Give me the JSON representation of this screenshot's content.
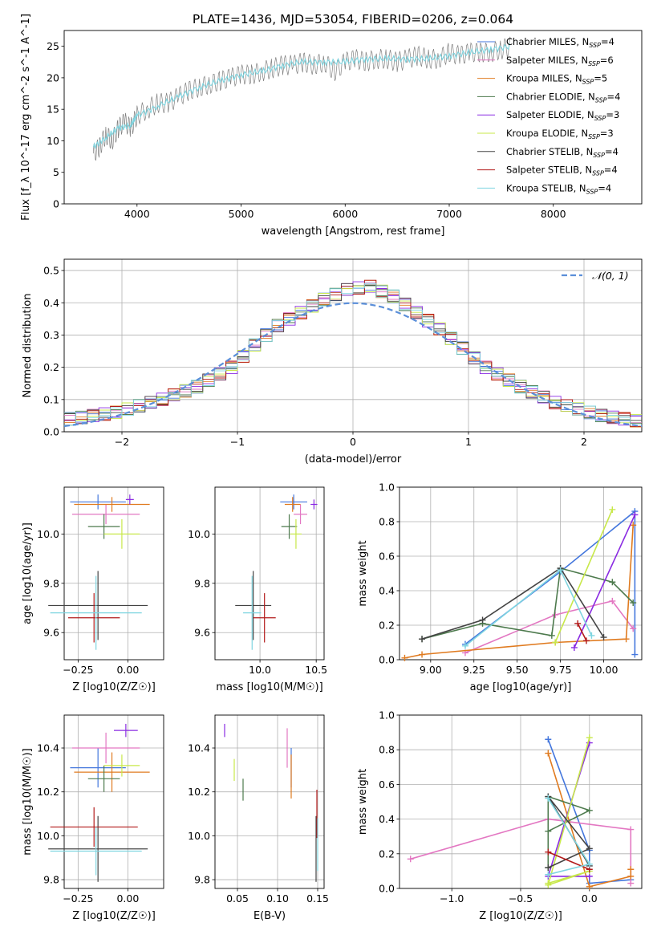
{
  "figure_title": "PLATE=1436, MJD=53054, FIBERID=0206, z=0.064",
  "colors": {
    "chab_miles": "#4477dd",
    "salp_miles": "#e377c2",
    "krou_miles": "#e07b20",
    "chab_elodie": "#4d7a4d",
    "salp_elodie": "#8a2be2",
    "krou_elodie": "#c8e84a",
    "chab_stelib": "#444444",
    "salp_stelib": "#b31b1b",
    "krou_stelib": "#7fd5e0",
    "gauss": "#5b8fd9"
  },
  "chart_data": [
    {
      "id": "spectrum",
      "type": "line",
      "title": "PLATE=1436, MJD=53054, FIBERID=0206, z=0.064",
      "xlabel": "wavelength [Angstrom, rest frame]",
      "ylabel": "Flux [f_λ 10^-17 erg cm^-2 s^-1 A^-1]",
      "xlim": [
        3300,
        8850
      ],
      "ylim": [
        0,
        27.5
      ],
      "xticks": [
        "4000",
        "5000",
        "6000",
        "7000",
        "8000"
      ],
      "yticks": [
        "0",
        "5",
        "10",
        "15",
        "20",
        "25"
      ],
      "grid": false,
      "legend_position": "right",
      "legend": [
        {
          "base": "Chabrier MILES, N",
          "sub": "SSP",
          "eq": "=4",
          "color": "#4477dd"
        },
        {
          "base": "Salpeter MILES, N",
          "sub": "SSP",
          "eq": "=6",
          "color": "#e377c2"
        },
        {
          "base": "Kroupa MILES, N",
          "sub": "SSP",
          "eq": "=5",
          "color": "#e07b20"
        },
        {
          "base": "Chabrier ELODIE, N",
          "sub": "SSP",
          "eq": "=4",
          "color": "#4d7a4d"
        },
        {
          "base": "Salpeter ELODIE, N",
          "sub": "SSP",
          "eq": "=3",
          "color": "#8a2be2"
        },
        {
          "base": "Kroupa ELODIE, N",
          "sub": "SSP",
          "eq": "=3",
          "color": "#c8e84a"
        },
        {
          "base": "Chabrier STELIB, N",
          "sub": "SSP",
          "eq": "=4",
          "color": "#444444"
        },
        {
          "base": "Salpeter STELIB, N",
          "sub": "SSP",
          "eq": "=4",
          "color": "#b31b1b"
        },
        {
          "base": "Kroupa STELIB, N",
          "sub": "SSP",
          "eq": "=4",
          "color": "#7fd5e0"
        }
      ],
      "series": [
        {
          "name": "data",
          "color": "#808080",
          "x": [
            3580,
            3640,
            3700,
            3760,
            3820,
            3880,
            3940,
            4000,
            4100,
            4200,
            4300,
            4400,
            4500,
            4600,
            4700,
            4800,
            4900,
            5000,
            5100,
            5200,
            5300,
            5400,
            5500,
            5600,
            5700,
            5800,
            5900,
            6000,
            6100,
            6200,
            6300,
            6400,
            6500,
            6600,
            6700,
            6800,
            6900,
            7000,
            7100,
            7200,
            7300,
            7400,
            7500,
            7600
          ],
          "y": [
            8,
            9,
            11,
            10,
            12,
            13,
            12,
            14,
            15,
            16,
            16,
            17,
            18,
            18.5,
            19,
            19.5,
            20,
            20.5,
            20.5,
            21,
            21.5,
            22,
            22,
            22.5,
            22,
            22.5,
            21,
            22.5,
            23,
            22.5,
            23,
            23,
            22.5,
            23,
            23.5,
            23,
            23,
            24,
            23.5,
            24,
            24,
            24,
            24.5,
            25
          ]
        },
        {
          "name": "model",
          "color": "#7fd5e0",
          "x": [
            3580,
            3700,
            3820,
            3940,
            4000,
            4200,
            4400,
            4600,
            4800,
            5000,
            5200,
            5400,
            5600,
            5800,
            6000,
            6200,
            6400,
            6600,
            6800,
            7000,
            7200,
            7400,
            7600
          ],
          "y": [
            9,
            10.5,
            12,
            12.5,
            14,
            15.5,
            17,
            18.5,
            19.5,
            20.5,
            21,
            22,
            22.5,
            22.5,
            22.5,
            23,
            23,
            23,
            23,
            23.5,
            24,
            24.5,
            25
          ]
        }
      ]
    },
    {
      "id": "residuals",
      "type": "line",
      "xlabel": "(data-model)/error",
      "ylabel": "Normed distribution",
      "xlim": [
        -2.5,
        2.5
      ],
      "ylim": [
        0,
        0.535
      ],
      "xticks": [
        "−2",
        "−1",
        "0",
        "1",
        "2"
      ],
      "yticks": [
        "0.0",
        "0.1",
        "0.2",
        "0.3",
        "0.4",
        "0.5"
      ],
      "grid": true,
      "legend_position": "top-right",
      "legend": [
        {
          "label": "𝒩(0, 1)",
          "style": "dashed"
        }
      ],
      "series": [
        {
          "name": "𝒩(0, 1)",
          "style": "dashed",
          "mu": 0,
          "sigma": 1
        },
        {
          "name": "histogram",
          "style": "step",
          "x": [
            -2.5,
            -2.1,
            -1.7,
            -1.4,
            -1.1,
            -0.9,
            -0.7,
            -0.5,
            -0.3,
            -0.1,
            0.1,
            0.3,
            0.5,
            0.7,
            0.9,
            1.1,
            1.4,
            1.7,
            2.1,
            2.5
          ],
          "y": [
            0.04,
            0.06,
            0.1,
            0.14,
            0.2,
            0.27,
            0.33,
            0.37,
            0.41,
            0.44,
            0.45,
            0.42,
            0.37,
            0.32,
            0.26,
            0.2,
            0.14,
            0.09,
            0.05,
            0.03
          ]
        }
      ]
    },
    {
      "id": "age_vs_Z",
      "type": "scatter",
      "xlabel": "Z [log10(Z/Z☉)]",
      "ylabel": "age [log10(age/yr)]",
      "xlim": [
        -0.32,
        0.18
      ],
      "ylim": [
        9.49,
        10.19
      ],
      "xticks": [
        "−0.25",
        "0.00"
      ],
      "yticks": [
        "9.6",
        "9.8",
        "10.0"
      ],
      "grid": true,
      "points": [
        {
          "x": -0.15,
          "y": 10.13,
          "xerr": 0.14,
          "yerr": 0.03,
          "color": "#4477dd"
        },
        {
          "x": -0.11,
          "y": 10.08,
          "xerr": 0.17,
          "yerr": 0.04,
          "color": "#e377c2"
        },
        {
          "x": -0.08,
          "y": 10.12,
          "xerr": 0.19,
          "yerr": 0.03,
          "color": "#e07b20"
        },
        {
          "x": -0.12,
          "y": 10.03,
          "xerr": 0.08,
          "yerr": 0.05,
          "color": "#4d7a4d"
        },
        {
          "x": 0.01,
          "y": 10.14,
          "xerr": 0.02,
          "yerr": 0.02,
          "color": "#8a2be2"
        },
        {
          "x": -0.03,
          "y": 10.0,
          "xerr": 0.09,
          "yerr": 0.06,
          "color": "#c8e84a"
        },
        {
          "x": -0.15,
          "y": 9.71,
          "xerr": 0.25,
          "yerr": 0.14,
          "color": "#444444"
        },
        {
          "x": -0.17,
          "y": 9.66,
          "xerr": 0.13,
          "yerr": 0.1,
          "color": "#b31b1b"
        },
        {
          "x": -0.16,
          "y": 9.68,
          "xerr": 0.23,
          "yerr": 0.15,
          "color": "#7fd5e0"
        }
      ]
    },
    {
      "id": "age_vs_mass",
      "type": "scatter",
      "xlabel": "mass [log10(M/M☉)]",
      "ylabel": "",
      "xlim": [
        9.6,
        10.57
      ],
      "ylim": [
        9.49,
        10.19
      ],
      "xticks": [
        "10.0",
        "10.5"
      ],
      "yticks": [
        "9.6",
        "9.8",
        "10.0"
      ],
      "grid": true,
      "points": [
        {
          "x": 10.3,
          "y": 10.13,
          "xerr": 0.12,
          "yerr": 0.03,
          "color": "#4477dd"
        },
        {
          "x": 10.36,
          "y": 10.08,
          "xerr": 0.06,
          "yerr": 0.04,
          "color": "#e377c2"
        },
        {
          "x": 10.29,
          "y": 10.12,
          "xerr": 0.07,
          "yerr": 0.03,
          "color": "#e07b20"
        },
        {
          "x": 10.26,
          "y": 10.03,
          "xerr": 0.07,
          "yerr": 0.05,
          "color": "#4d7a4d"
        },
        {
          "x": 10.48,
          "y": 10.12,
          "xerr": 0.03,
          "yerr": 0.02,
          "color": "#8a2be2"
        },
        {
          "x": 10.32,
          "y": 10.0,
          "xerr": 0.05,
          "yerr": 0.06,
          "color": "#c8e84a"
        },
        {
          "x": 9.94,
          "y": 9.71,
          "xerr": 0.16,
          "yerr": 0.14,
          "color": "#444444"
        },
        {
          "x": 10.04,
          "y": 9.66,
          "xerr": 0.1,
          "yerr": 0.1,
          "color": "#b31b1b"
        },
        {
          "x": 9.93,
          "y": 9.68,
          "xerr": 0.08,
          "yerr": 0.15,
          "color": "#7fd5e0"
        }
      ]
    },
    {
      "id": "weight_vs_age",
      "type": "line",
      "xlabel": "age [log10(age/yr)]",
      "ylabel": "mass weight",
      "xlim": [
        8.82,
        10.22
      ],
      "ylim": [
        0,
        1
      ],
      "xticks": [
        "9.00",
        "9.25",
        "9.50",
        "9.75",
        "10.00"
      ],
      "yticks": [
        "0.0",
        "0.2",
        "0.4",
        "0.6",
        "0.8",
        "1.0"
      ],
      "grid": true,
      "series": [
        {
          "name": "Chabrier MILES",
          "color": "#4477dd",
          "x": [
            9.2,
            9.75,
            10.18,
            10.18
          ],
          "y": [
            0.09,
            0.51,
            0.86,
            0.03
          ]
        },
        {
          "name": "Salpeter MILES",
          "color": "#e377c2",
          "x": [
            9.2,
            9.72,
            10.05,
            10.17
          ],
          "y": [
            0.04,
            0.26,
            0.34,
            0.18
          ]
        },
        {
          "name": "Kroupa MILES",
          "color": "#e07b20",
          "x": [
            8.85,
            8.95,
            9.72,
            10.13,
            10.17
          ],
          "y": [
            0.01,
            0.03,
            0.1,
            0.12,
            0.78
          ]
        },
        {
          "name": "Chabrier ELODIE",
          "color": "#4d7a4d",
          "x": [
            8.95,
            9.3,
            9.7,
            9.75,
            10.05,
            10.17
          ],
          "y": [
            0.12,
            0.21,
            0.14,
            0.53,
            0.45,
            0.33
          ]
        },
        {
          "name": "Salpeter ELODIE",
          "color": "#8a2be2",
          "x": [
            9.83,
            10.18
          ],
          "y": [
            0.07,
            0.84
          ]
        },
        {
          "name": "Kroupa ELODIE",
          "color": "#c8e84a",
          "x": [
            9.72,
            10.05
          ],
          "y": [
            0.1,
            0.87
          ]
        },
        {
          "name": "Chabrier STELIB",
          "color": "#444444",
          "x": [
            8.95,
            9.3,
            9.75,
            10.0
          ],
          "y": [
            0.12,
            0.23,
            0.53,
            0.13
          ]
        },
        {
          "name": "Salpeter STELIB",
          "color": "#b31b1b",
          "x": [
            9.85,
            9.9
          ],
          "y": [
            0.21,
            0.11
          ]
        },
        {
          "name": "Kroupa STELIB",
          "color": "#7fd5e0",
          "x": [
            9.2,
            9.75,
            9.93
          ],
          "y": [
            0.08,
            0.52,
            0.14
          ]
        }
      ]
    },
    {
      "id": "mass_vs_Z",
      "type": "scatter",
      "xlabel": "Z [log10(Z/Z☉)]",
      "ylabel": "mass [log10(M/M☉)]",
      "xlim": [
        -0.32,
        0.18
      ],
      "ylim": [
        9.76,
        10.55
      ],
      "xticks": [
        "−0.25",
        "0.00"
      ],
      "yticks": [
        "9.8",
        "10.0",
        "10.2",
        "10.4"
      ],
      "grid": true,
      "points": [
        {
          "x": -0.15,
          "y": 10.31,
          "xerr": 0.14,
          "yerr": 0.09,
          "color": "#4477dd"
        },
        {
          "x": -0.11,
          "y": 10.4,
          "xerr": 0.17,
          "yerr": 0.07,
          "color": "#e377c2"
        },
        {
          "x": -0.08,
          "y": 10.29,
          "xerr": 0.19,
          "yerr": 0.09,
          "color": "#e07b20"
        },
        {
          "x": -0.12,
          "y": 10.26,
          "xerr": 0.08,
          "yerr": 0.06,
          "color": "#4d7a4d"
        },
        {
          "x": -0.01,
          "y": 10.48,
          "xerr": 0.06,
          "yerr": 0.03,
          "color": "#8a2be2"
        },
        {
          "x": -0.03,
          "y": 10.32,
          "xerr": 0.09,
          "yerr": 0.05,
          "color": "#c8e84a"
        },
        {
          "x": -0.15,
          "y": 9.94,
          "xerr": 0.25,
          "yerr": 0.15,
          "color": "#444444"
        },
        {
          "x": -0.17,
          "y": 10.04,
          "xerr": 0.22,
          "yerr": 0.09,
          "color": "#b31b1b"
        },
        {
          "x": -0.16,
          "y": 9.93,
          "xerr": 0.23,
          "yerr": 0.11,
          "color": "#7fd5e0"
        }
      ]
    },
    {
      "id": "mass_vs_EBV",
      "type": "scatter",
      "xlabel": "E(B-V)",
      "ylabel": "",
      "xlim": [
        0.022,
        0.158
      ],
      "ylim": [
        9.76,
        10.55
      ],
      "xticks": [
        "0.05",
        "0.10",
        "0.15"
      ],
      "yticks": [
        "9.8",
        "10.0",
        "10.2",
        "10.4"
      ],
      "grid": true,
      "points": [
        {
          "x": 0.117,
          "y": 10.31,
          "xerr": 0,
          "yerr": 0.09,
          "color": "#4477dd"
        },
        {
          "x": 0.112,
          "y": 10.4,
          "xerr": 0,
          "yerr": 0.09,
          "color": "#e377c2"
        },
        {
          "x": 0.117,
          "y": 10.27,
          "xerr": 0,
          "yerr": 0.1,
          "color": "#e07b20"
        },
        {
          "x": 0.057,
          "y": 10.21,
          "xerr": 0,
          "yerr": 0.05,
          "color": "#4d7a4d"
        },
        {
          "x": 0.034,
          "y": 10.48,
          "xerr": 0,
          "yerr": 0.03,
          "color": "#8a2be2"
        },
        {
          "x": 0.046,
          "y": 10.3,
          "xerr": 0,
          "yerr": 0.05,
          "color": "#c8e84a"
        },
        {
          "x": 0.148,
          "y": 9.94,
          "xerr": 0,
          "yerr": 0.15,
          "color": "#444444"
        },
        {
          "x": 0.149,
          "y": 10.1,
          "xerr": 0,
          "yerr": 0.11,
          "color": "#b31b1b"
        },
        {
          "x": 0.15,
          "y": 9.96,
          "xerr": 0,
          "yerr": 0.12,
          "color": "#7fd5e0"
        }
      ]
    },
    {
      "id": "weight_vs_Z",
      "type": "line",
      "xlabel": "Z [log10(Z/Z☉)]",
      "ylabel": "mass weight",
      "xlim": [
        -1.38,
        0.38
      ],
      "ylim": [
        0,
        1
      ],
      "xticks": [
        "−1.0",
        "−0.5",
        "0.0"
      ],
      "yticks": [
        "0.0",
        "0.2",
        "0.4",
        "0.6",
        "0.8",
        "1.0"
      ],
      "grid": true,
      "series": [
        {
          "name": "Chabrier MILES",
          "color": "#4477dd",
          "x": [
            -0.3,
            0.0,
            0.0,
            0.3
          ],
          "y": [
            0.86,
            0.22,
            0.03,
            0.05
          ]
        },
        {
          "name": "Salpeter MILES",
          "color": "#e377c2",
          "x": [
            -1.3,
            -0.3,
            0.3,
            0.3
          ],
          "y": [
            0.17,
            0.4,
            0.34,
            0.03
          ]
        },
        {
          "name": "Kroupa MILES",
          "color": "#e07b20",
          "x": [
            -0.3,
            0.0,
            0.3,
            0.3
          ],
          "y": [
            0.78,
            0.01,
            0.07,
            0.11
          ]
        },
        {
          "name": "Chabrier ELODIE",
          "color": "#4d7a4d",
          "x": [
            -0.3,
            0.0,
            -0.3,
            -0.3
          ],
          "y": [
            0.33,
            0.45,
            0.53,
            0.12
          ]
        },
        {
          "name": "Salpeter ELODIE",
          "color": "#8a2be2",
          "x": [
            0.0,
            -0.3,
            0.0
          ],
          "y": [
            0.84,
            0.07,
            0.07
          ]
        },
        {
          "name": "Kroupa ELODIE",
          "color": "#c8e84a",
          "x": [
            0.0,
            -0.3,
            0.0,
            -0.3
          ],
          "y": [
            0.87,
            0.02,
            0.1,
            0.03
          ]
        },
        {
          "name": "Chabrier STELIB",
          "color": "#444444",
          "x": [
            -0.3,
            0.0,
            -0.3,
            0.0
          ],
          "y": [
            0.12,
            0.23,
            0.53,
            0.13
          ]
        },
        {
          "name": "Salpeter STELIB",
          "color": "#b31b1b",
          "x": [
            -0.3,
            0.0
          ],
          "y": [
            0.21,
            0.11
          ]
        },
        {
          "name": "Kroupa STELIB",
          "color": "#7fd5e0",
          "x": [
            -0.3,
            0.0,
            -0.3
          ],
          "y": [
            0.08,
            0.14,
            0.52
          ]
        }
      ]
    }
  ]
}
